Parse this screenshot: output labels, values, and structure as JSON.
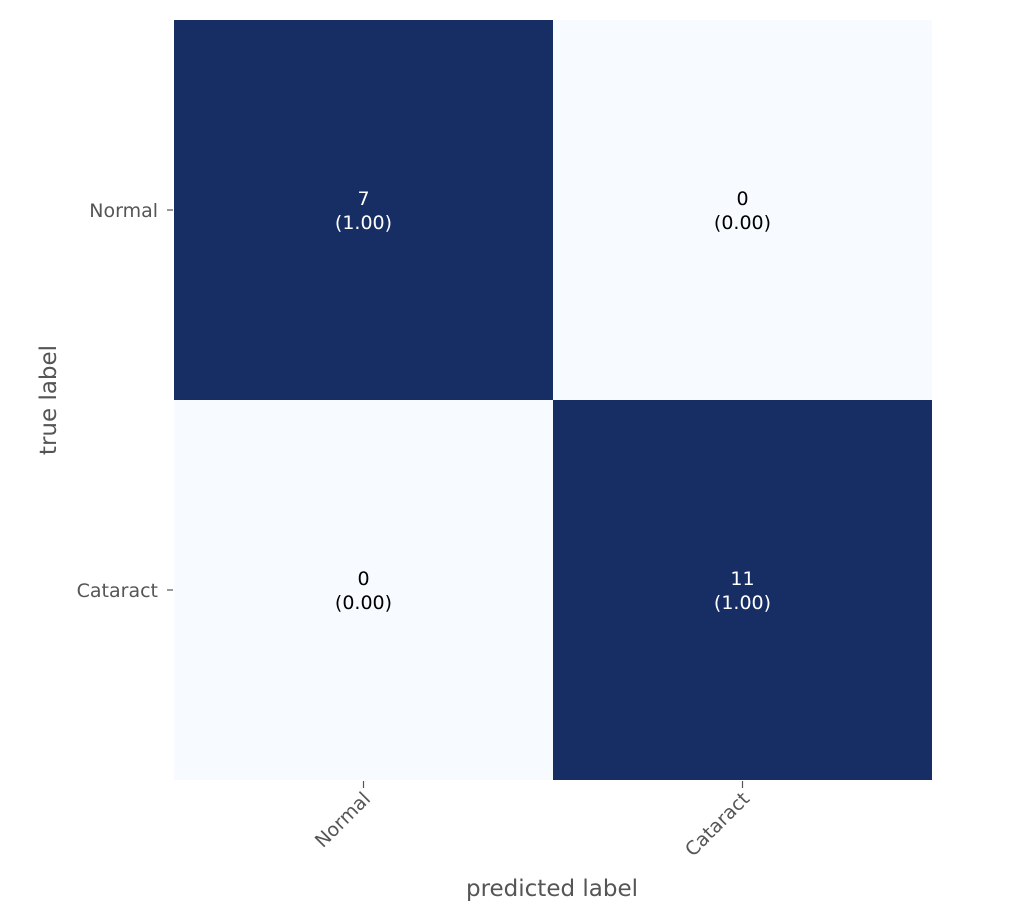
{
  "chart_data": {
    "type": "heatmap",
    "title": "",
    "xlabel": "predicted label",
    "ylabel": "true label",
    "x_categories": [
      "Normal",
      "Cataract"
    ],
    "y_categories": [
      "Normal",
      "Cataract"
    ],
    "values": [
      [
        7,
        0
      ],
      [
        0,
        11
      ]
    ],
    "normalized": [
      [
        1.0,
        0.0
      ],
      [
        0.0,
        1.0
      ]
    ],
    "cell_text": [
      [
        {
          "count": "7",
          "ratio": "(1.00)"
        },
        {
          "count": "0",
          "ratio": "(0.00)"
        }
      ],
      [
        {
          "count": "0",
          "ratio": "(0.00)"
        },
        {
          "count": "11",
          "ratio": "(1.00)"
        }
      ]
    ],
    "colormap": {
      "low": "#f7fbff",
      "high": "#162e63"
    },
    "text_colors": {
      "on_dark": "#ffffff",
      "on_light": "#000000"
    },
    "tick_color": "#555555",
    "grid": false,
    "legend": "none"
  }
}
